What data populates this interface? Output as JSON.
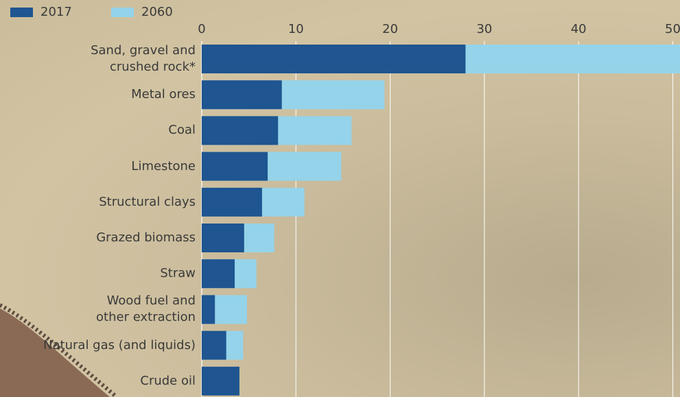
{
  "chart_data": {
    "type": "bar",
    "orientation": "horizontal",
    "overlap": true,
    "categories": [
      "Sand, gravel and\ncrushed rock*",
      "Metal ores",
      "Coal",
      "Limestone",
      "Structural clays",
      "Grazed biomass",
      "Straw",
      "Wood fuel and\nother extraction",
      "Natural gas (and liquids)",
      "Crude oil"
    ],
    "series": [
      {
        "name": "2017",
        "color": "#1f5590",
        "values": [
          28.0,
          8.5,
          8.1,
          7.0,
          6.4,
          4.5,
          3.5,
          1.4,
          2.6,
          4.0
        ]
      },
      {
        "name": "2060",
        "color": "#95d3ea",
        "values": [
          55,
          19.4,
          15.9,
          14.8,
          10.9,
          7.7,
          5.8,
          4.8,
          4.4,
          null
        ]
      }
    ],
    "xlim": [
      0,
      50.8
    ],
    "xticks": [
      0,
      10,
      20,
      30,
      40,
      50
    ],
    "grid": true,
    "legend": "top-left"
  }
}
